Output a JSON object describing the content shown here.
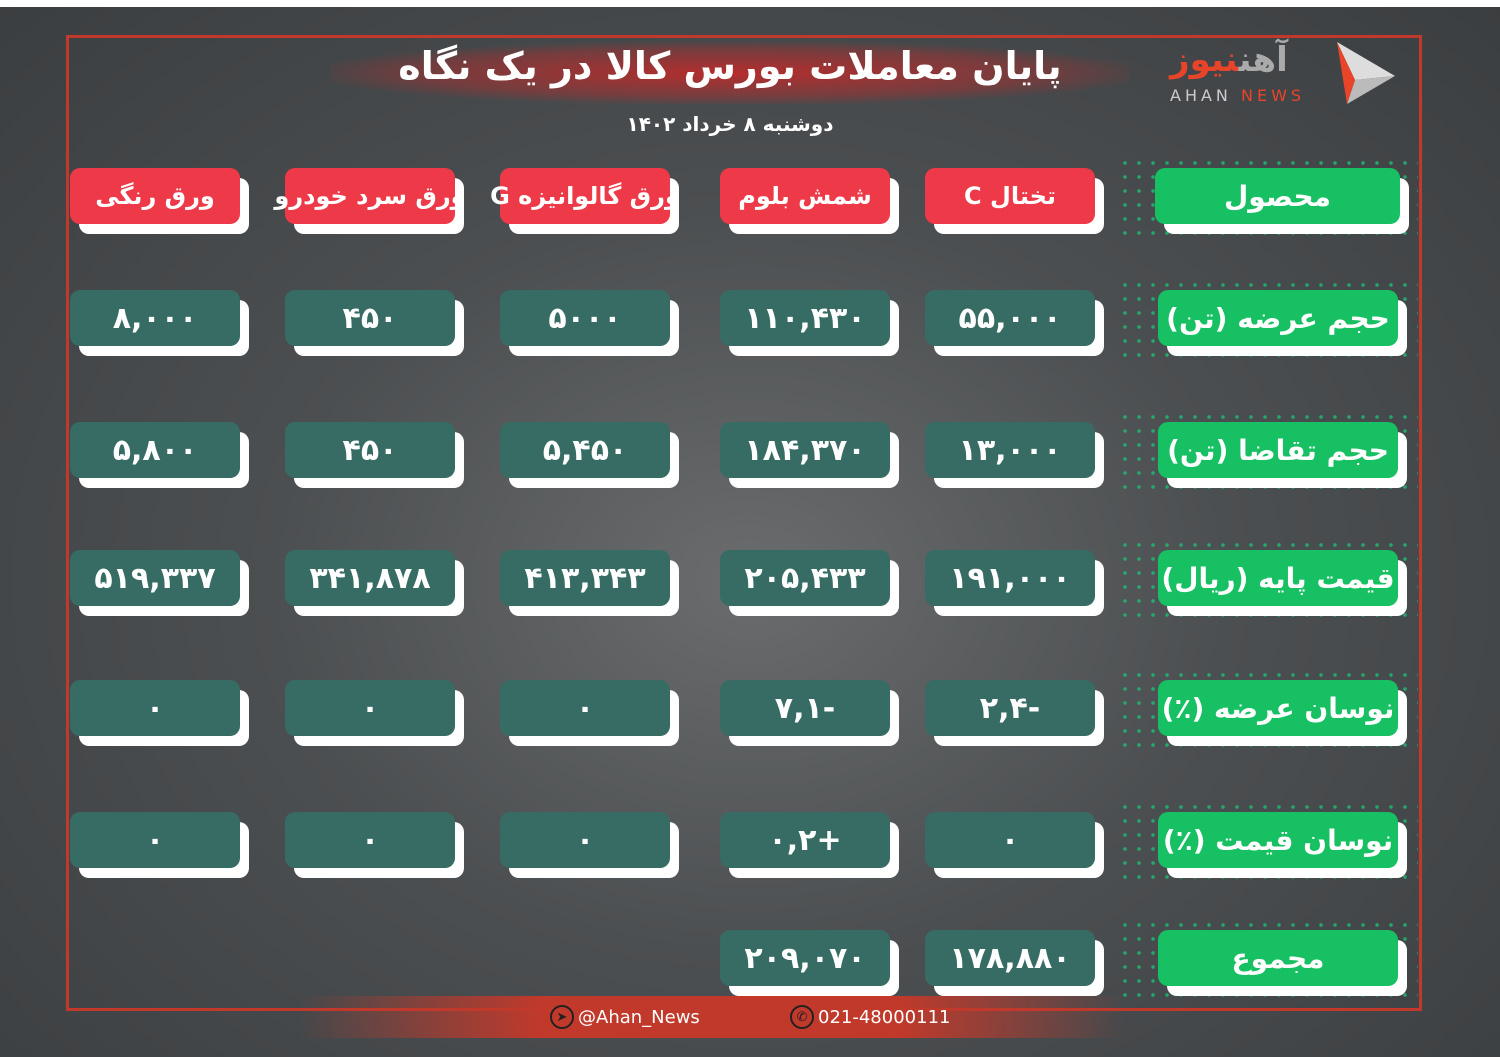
{
  "header": {
    "title": "پایان معاملات بورس کالا در یک نگاه",
    "date": "دوشنبه ۸ خرداد ۱۴۰۲",
    "logo": {
      "fa_part1": "آهن",
      "fa_part2": "نیوز",
      "en_part1": "AHAN",
      "en_part2": "NEWS"
    }
  },
  "colors": {
    "header_red": "#ee3a48",
    "label_green": "#18c064",
    "value_teal": "#376c64",
    "frame_red": "#c0392b"
  },
  "table": {
    "corner_label": "محصول",
    "columns": [
      "تختال C",
      "شمش بلوم",
      "ورق گالوانیزه G",
      "ورق سرد خودرو",
      "ورق رنگی"
    ],
    "rows": [
      {
        "label": "حجم عرضه (تن)",
        "values": [
          "۵۵,۰۰۰",
          "۱۱۰,۴۳۰",
          "۵۰۰۰",
          "۴۵۰",
          "۸,۰۰۰"
        ]
      },
      {
        "label": "حجم تقاضا (تن)",
        "values": [
          "۱۳,۰۰۰",
          "۱۸۴,۳۷۰",
          "۵,۴۵۰",
          "۴۵۰",
          "۵,۸۰۰"
        ]
      },
      {
        "label": "قیمت پایه (ریال)",
        "values": [
          "۱۹۱,۰۰۰",
          "۲۰۵,۴۳۳",
          "۴۱۳,۳۴۳",
          "۳۴۱,۸۷۸",
          "۵۱۹,۳۳۷"
        ]
      },
      {
        "label": "نوسان عرضه (٪)",
        "values": [
          "-۲,۴",
          "-۷,۱",
          "۰",
          "۰",
          "۰"
        ]
      },
      {
        "label": "نوسان قیمت (٪)",
        "values": [
          "۰",
          "+۰,۲",
          "۰",
          "۰",
          "۰"
        ]
      },
      {
        "label": "مجموع",
        "values": [
          "۱۷۸,۸۸۰",
          "۲۰۹,۰۷۰"
        ]
      }
    ]
  },
  "footer": {
    "telegram": "@Ahan_News",
    "phone": "021-48000111",
    "telegram_icon": "telegram-icon",
    "phone_icon": "phone-icon"
  }
}
